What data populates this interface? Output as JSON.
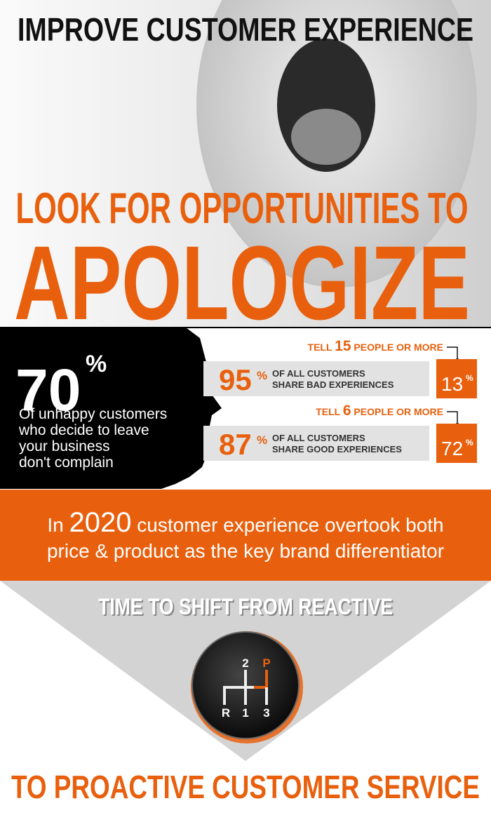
{
  "header": {
    "title": "IMPROVE CUSTOMER EXPERIENCE"
  },
  "headline": {
    "lead": "LOOK FOR OPPORTUNITIES TO",
    "main": "APOLOGIZE"
  },
  "stat": {
    "value": 70,
    "unit": "%",
    "text": [
      "Of unhappy customers",
      "who decide to leave",
      "your business",
      "don't complain"
    ]
  },
  "shares": [
    {
      "tell_prefix": "TELL",
      "tell_count": 15,
      "tell_suffix": "PEOPLE OR MORE",
      "percent": 95,
      "unit": "%",
      "text": [
        "OF ALL CUSTOMERS",
        "SHARE BAD EXPERIENCES"
      ],
      "box_value": 13,
      "box_unit": "%"
    },
    {
      "tell_prefix": "TELL",
      "tell_count": 6,
      "tell_suffix": "PEOPLE OR MORE",
      "percent": 87,
      "unit": "%",
      "text": [
        "OF ALL CUSTOMERS",
        "SHARE GOOD EXPERIENCES"
      ],
      "box_value": 72,
      "box_unit": "%"
    }
  ],
  "banner": {
    "prefix": "In",
    "year": 2020,
    "line1": "customer experience overtook both",
    "line2": "price & product as the key brand differentiator"
  },
  "shift": {
    "from": "TIME TO SHIFT FROM REACTIVE",
    "gears": [
      "2",
      "P",
      "R",
      "1",
      "3"
    ],
    "to": "TO PROACTIVE CUSTOMER SERVICE"
  }
}
